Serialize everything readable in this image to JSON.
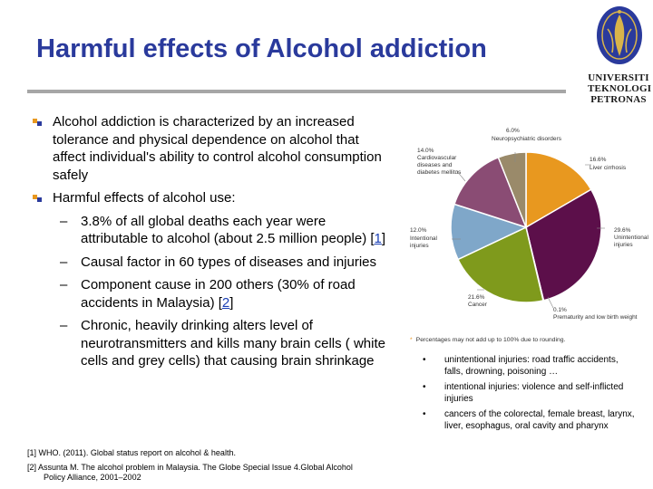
{
  "slide": {
    "title": "Harmful effects of Alcohol addiction"
  },
  "logo": {
    "line1": "UNIVERSITI",
    "line2": "TEKNOLOGI",
    "line3": "PETRONAS",
    "color": "#2a3a9c"
  },
  "bullets": {
    "b1": "Alcohol addiction is characterized by an increased tolerance and physical dependence on alcohol that affect individual's ability to control alcohol consumption safely",
    "b2": "Harmful effects of alcohol use:",
    "s1_text": "3.8% of all global deaths each year were attributable to alcohol (about 2.5 million people) [",
    "s1_ref": "1",
    "s1_end": "]",
    "s2": "Causal factor in 60 types of diseases and injuries",
    "s3_text": "Component cause in 200 others (30% of road accidents in Malaysia) [",
    "s3_ref": "2",
    "s3_end": "]",
    "s4": "Chronic, heavily drinking alters level of neurotransmitters and kills many brain cells ( white cells and grey cells) that causing brain shrinkage"
  },
  "chart_data": {
    "type": "pie",
    "slices": [
      {
        "label": "Liver cirrhosis",
        "value": 16.6,
        "pct": "16.6%",
        "color": "#e8981f"
      },
      {
        "label": "Unintentional injuries",
        "value": 29.6,
        "pct": "29.6%",
        "color": "#5c0f4a"
      },
      {
        "label": "Prematurity and low birth weight",
        "value": 0.1,
        "pct": "0.1%",
        "color": "#c8c8c8"
      },
      {
        "label": "Cancer",
        "value": 21.6,
        "pct": "21.6%",
        "color": "#7f9a1c"
      },
      {
        "label": "Intentional injuries",
        "value": 12.0,
        "pct": "12.0%",
        "color": "#7fa7c9"
      },
      {
        "label": "Cardiovascular diseases and diabetes mellitus",
        "value": 14.0,
        "pct": "14.0%",
        "color": "#8a4c74"
      },
      {
        "label": "Neuropsychiatric disorders",
        "value": 6.0,
        "pct": "6.0%",
        "color": "#9a8a6a"
      }
    ],
    "labels": {
      "liver_pct": "16.6%",
      "liver_l1": "Liver cirrhosis",
      "unint_pct": "29.6%",
      "unint_l1": "Unintentional",
      "unint_l2": "injuries",
      "prem_pct": "0.1%",
      "prem_l1": "Prematurity and low birth weight",
      "cancer_pct": "21.6%",
      "cancer_l1": "Cancer",
      "int_pct": "12.0%",
      "int_l1": "Intentional",
      "int_l2": "injuries",
      "cvd_pct": "14.0%",
      "cvd_l1": "Cardiovascular",
      "cvd_l2": "diseases and",
      "cvd_l3": "diabetes mellitus",
      "neuro_pct": "6.0%",
      "neuro_l1": "Neuropsychiatric disorders"
    },
    "note_marker": "*",
    "note": "Percentages may not add up to 100% due to rounding."
  },
  "notes_list": {
    "n1": "unintentional injuries: road traffic accidents, falls, drowning, poisoning …",
    "n2": "intentional injuries: violence and self-inflicted injuries",
    "n3": "cancers of the colorectal, female breast, larynx, liver, esophagus, oral cavity and pharynx",
    "bullet": "•"
  },
  "footnotes": {
    "f1": "[1] WHO. (2011). Global status report on alcohol & health.",
    "f2a": "[2] Assunta M. The alcohol problem in Malaysia. The Globe Special Issue 4.Global Alcohol",
    "f2b": "Policy Alliance, 2001–2002"
  },
  "dash": "–"
}
